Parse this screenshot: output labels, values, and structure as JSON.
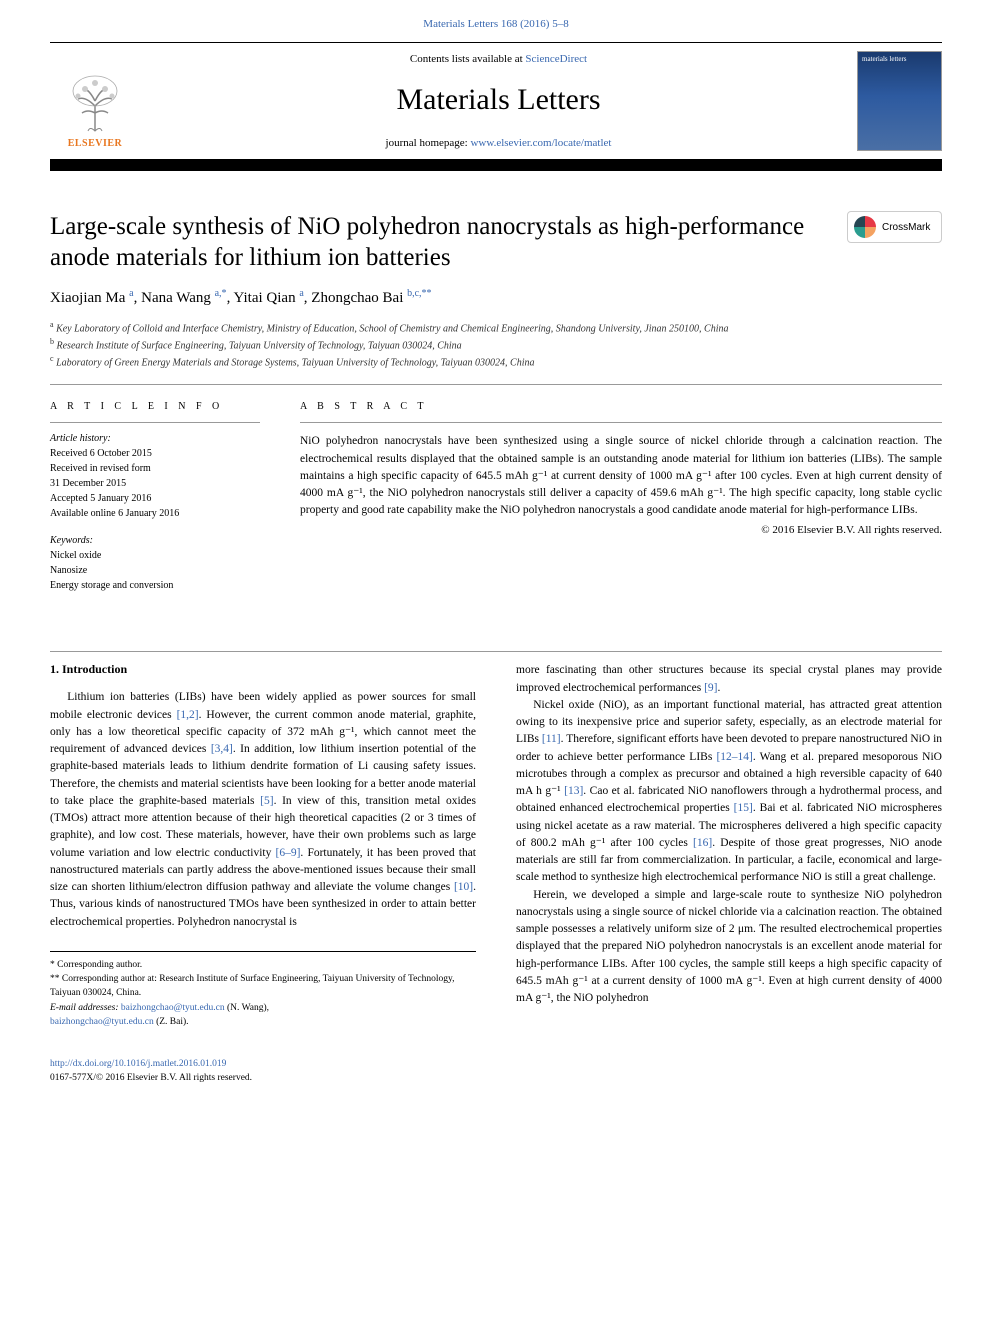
{
  "header": {
    "top_citation": "Materials Letters 168 (2016) 5–8",
    "contents_prefix": "Contents lists available at ",
    "contents_link": "ScienceDirect",
    "journal_name": "Materials Letters",
    "homepage_prefix": "journal homepage: ",
    "homepage_link": "www.elsevier.com/locate/matlet",
    "elsevier_label": "ELSEVIER",
    "cover_label": "materials letters"
  },
  "crossmark": {
    "label": "CrossMark"
  },
  "article": {
    "title": "Large-scale synthesis of NiO polyhedron nanocrystals as high-performance anode materials for lithium ion batteries",
    "authors_html": "Xiaojian Ma <sup>a</sup>, Nana Wang <sup>a,*</sup>, Yitai Qian <sup>a</sup>, Zhongchao Bai <sup>b,c,**</sup>",
    "affiliations": [
      {
        "sup": "a",
        "text": "Key Laboratory of Colloid and Interface Chemistry, Ministry of Education, School of Chemistry and Chemical Engineering, Shandong University, Jinan 250100, China"
      },
      {
        "sup": "b",
        "text": "Research Institute of Surface Engineering, Taiyuan University of Technology, Taiyuan 030024, China"
      },
      {
        "sup": "c",
        "text": "Laboratory of Green Energy Materials and Storage Systems, Taiyuan University of Technology, Taiyuan 030024, China"
      }
    ]
  },
  "info": {
    "heading": "A R T I C L E  I N F O",
    "history_label": "Article history:",
    "history": [
      "Received 6 October 2015",
      "Received in revised form",
      "31 December 2015",
      "Accepted 5 January 2016",
      "Available online 6 January 2016"
    ],
    "keywords_label": "Keywords:",
    "keywords": [
      "Nickel oxide",
      "Nanosize",
      "Energy storage and conversion"
    ]
  },
  "abstract": {
    "heading": "A B S T R A C T",
    "text": "NiO polyhedron nanocrystals have been synthesized using a single source of nickel chloride through a calcination reaction. The electrochemical results displayed that the obtained sample is an outstanding anode material for lithium ion batteries (LIBs). The sample maintains a high specific capacity of 645.5 mAh g⁻¹ at current density of 1000 mA g⁻¹ after 100 cycles. Even at high current density of 4000 mA g⁻¹, the NiO polyhedron nanocrystals still deliver a capacity of 459.6 mAh g⁻¹. The high specific capacity, long stable cyclic property and good rate capability make the NiO polyhedron nanocrystals a good candidate anode material for high-performance LIBs.",
    "copyright": "© 2016 Elsevier B.V. All rights reserved."
  },
  "body": {
    "section_heading": "1.  Introduction",
    "col1": "Lithium ion batteries (LIBs) have been widely applied as power sources for small mobile electronic devices [1,2]. However, the current common anode material, graphite, only has a low theoretical specific capacity of 372 mAh g⁻¹, which cannot meet the requirement of advanced devices [3,4]. In addition, low lithium insertion potential of the graphite-based materials leads to lithium dendrite formation of Li causing safety issues. Therefore, the chemists and material scientists have been looking for a better anode material to take place the graphite-based materials [5]. In view of this, transition metal oxides (TMOs) attract more attention because of their high theoretical capacities (2 or 3 times of graphite), and low cost. These materials, however, have their own problems such as large volume variation and low electric conductivity [6–9]. Fortunately, it has been proved that nanostructured materials can partly address the above-mentioned issues because their small size can shorten lithium/electron diffusion pathway and alleviate the volume changes [10]. Thus, various kinds of nanostructured TMOs have been synthesized in order to attain better electrochemical properties. Polyhedron nanocrystal is",
    "col2_p1": "more fascinating than other structures because its special crystal planes may provide improved electrochemical performances [9].",
    "col2_p2": "Nickel oxide (NiO), as an important functional material, has attracted great attention owing to its inexpensive price and superior safety, especially, as an electrode material for LIBs [11]. Therefore, significant efforts have been devoted to prepare nanostructured NiO in order to achieve better performance LIBs [12–14]. Wang et al. prepared mesoporous NiO microtubes through a complex as precursor and obtained a high reversible capacity of 640 mA h g⁻¹ [13]. Cao et al. fabricated NiO nanoflowers through a hydrothermal process, and obtained enhanced electrochemical properties [15]. Bai et al. fabricated NiO microspheres using nickel acetate as a raw material. The microspheres delivered a high specific capacity of 800.2 mAh g⁻¹ after 100 cycles [16]. Despite of those great progresses, NiO anode materials are still far from commercialization. In particular, a facile, economical and large-scale method to synthesize high electrochemical performance NiO is still a great challenge.",
    "col2_p3": "Herein, we developed a simple and large-scale route to synthesize NiO polyhedron nanocrystals using a single source of nickel chloride via a calcination reaction. The obtained sample possesses a relatively uniform size of 2 μm. The resulted electrochemical properties displayed that the prepared NiO polyhedron nanocrystals is an excellent anode material for high-performance LIBs. After 100 cycles, the sample still keeps a high specific capacity of 645.5 mAh g⁻¹ at a current density of 1000 mA g⁻¹. Even at high current density of 4000 mA g⁻¹, the NiO polyhedron"
  },
  "footnotes": {
    "corr1": "* Corresponding author.",
    "corr2": "** Corresponding author at: Research Institute of Surface Engineering, Taiyuan University of Technology, Taiyuan 030024, China.",
    "email_label": "E-mail addresses: ",
    "email1": "baizhongchao@tyut.edu.cn",
    "email1_name": " (N. Wang),",
    "email2": "baizhongchao@tyut.edu.cn",
    "email2_name": " (Z. Bai)."
  },
  "footer": {
    "doi": "http://dx.doi.org/10.1016/j.matlet.2016.01.019",
    "issn": "0167-577X/© 2016 Elsevier B.V. All rights reserved."
  },
  "colors": {
    "link": "#3968b0",
    "elsevier_orange": "#e8761f"
  }
}
